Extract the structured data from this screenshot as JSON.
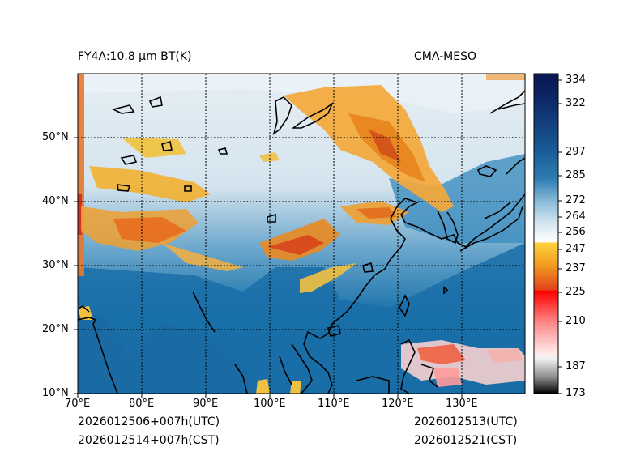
{
  "header": {
    "left_title": "FY4A:10.8 µm BT(K)",
    "right_title": "CMA-MESO"
  },
  "footer": {
    "utc_init": "2026012506+007h(UTC)",
    "cst_init": "2026012514+007h(CST)",
    "utc_valid": "2026012513(UTC)",
    "cst_valid": "2026012521(CST)"
  },
  "map": {
    "lon_ticks": [
      "70°E",
      "80°E",
      "90°E",
      "100°E",
      "110°E",
      "120°E",
      "130°E"
    ],
    "lat_ticks": [
      "50°N",
      "40°N",
      "30°N",
      "20°N",
      "10°N"
    ],
    "grid": "dotted"
  },
  "colorbar": {
    "ticks": [
      "334",
      "322",
      "297",
      "285",
      "272",
      "264",
      "256",
      "247",
      "237",
      "225",
      "210",
      "187",
      "173"
    ]
  },
  "colors": {
    "cold_cloud": "#e8841c",
    "very_cold": "#d0301a",
    "cirrus": "#f2c030",
    "mid_cloud": "#dbe8f0",
    "warm_surface": "#1a6ea8",
    "ocean": "#1468a3"
  }
}
